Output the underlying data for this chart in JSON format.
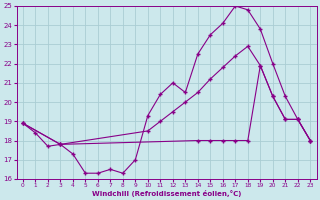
{
  "xlabel": "Windchill (Refroidissement éolien,°C)",
  "bg_color": "#cce8ec",
  "grid_color": "#aacdd4",
  "line_color": "#880088",
  "xlim": [
    -0.5,
    23.5
  ],
  "ylim": [
    16,
    25
  ],
  "xticks": [
    0,
    1,
    2,
    3,
    4,
    5,
    6,
    7,
    8,
    9,
    10,
    11,
    12,
    13,
    14,
    15,
    16,
    17,
    18,
    19,
    20,
    21,
    22,
    23
  ],
  "yticks": [
    16,
    17,
    18,
    19,
    20,
    21,
    22,
    23,
    24,
    25
  ],
  "series1": {
    "x": [
      0,
      1,
      2,
      3,
      4,
      5,
      6,
      7,
      8,
      9,
      10,
      11,
      12,
      13,
      14,
      15,
      16,
      17,
      18,
      19,
      20,
      21,
      22,
      23
    ],
    "y": [
      18.9,
      18.4,
      17.7,
      17.8,
      17.3,
      16.3,
      16.3,
      16.5,
      16.3,
      17.0,
      19.3,
      20.4,
      21.0,
      20.5,
      22.5,
      23.5,
      24.1,
      25.0,
      24.8,
      23.8,
      22.0,
      20.3,
      19.1,
      18.0
    ]
  },
  "series2": {
    "x": [
      0,
      3,
      10,
      11,
      12,
      13,
      14,
      15,
      16,
      17,
      18,
      19,
      20,
      21,
      22,
      23
    ],
    "y": [
      18.9,
      17.8,
      18.5,
      19.0,
      19.5,
      20.0,
      20.5,
      21.2,
      21.8,
      22.4,
      22.9,
      21.9,
      20.3,
      19.1,
      19.1,
      18.0
    ]
  },
  "series3": {
    "x": [
      0,
      3,
      14,
      15,
      16,
      17,
      18,
      19,
      20,
      21,
      22,
      23
    ],
    "y": [
      18.9,
      17.8,
      18.0,
      18.0,
      18.0,
      18.0,
      18.0,
      21.9,
      20.3,
      19.1,
      19.1,
      18.0
    ]
  }
}
